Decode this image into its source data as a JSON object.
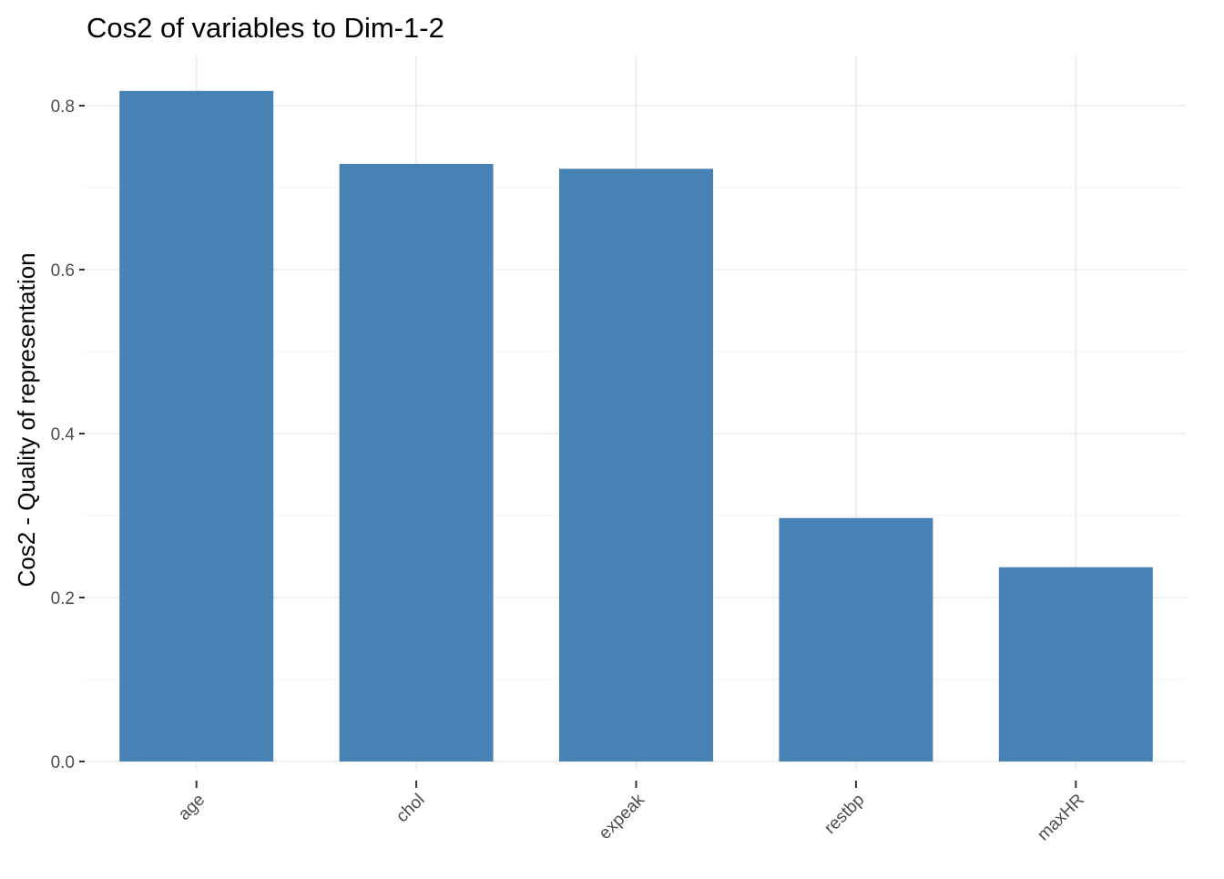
{
  "chart_data": {
    "type": "bar",
    "title": "Cos2 of variables to Dim-1-2",
    "xlabel": "",
    "ylabel": "Cos2 - Quality of representation",
    "categories": [
      "age",
      "chol",
      "expeak",
      "restbp",
      "maxHR"
    ],
    "values": [
      0.818,
      0.729,
      0.723,
      0.297,
      0.237
    ],
    "ylim": [
      -0.01,
      0.86
    ],
    "y_ticks": [
      0.0,
      0.2,
      0.4,
      0.6,
      0.8
    ],
    "y_tick_labels": [
      "0.0",
      "0.2",
      "0.4",
      "0.6",
      "0.8"
    ],
    "bar_color": "#4682b4",
    "grid": true,
    "legend": "none"
  }
}
